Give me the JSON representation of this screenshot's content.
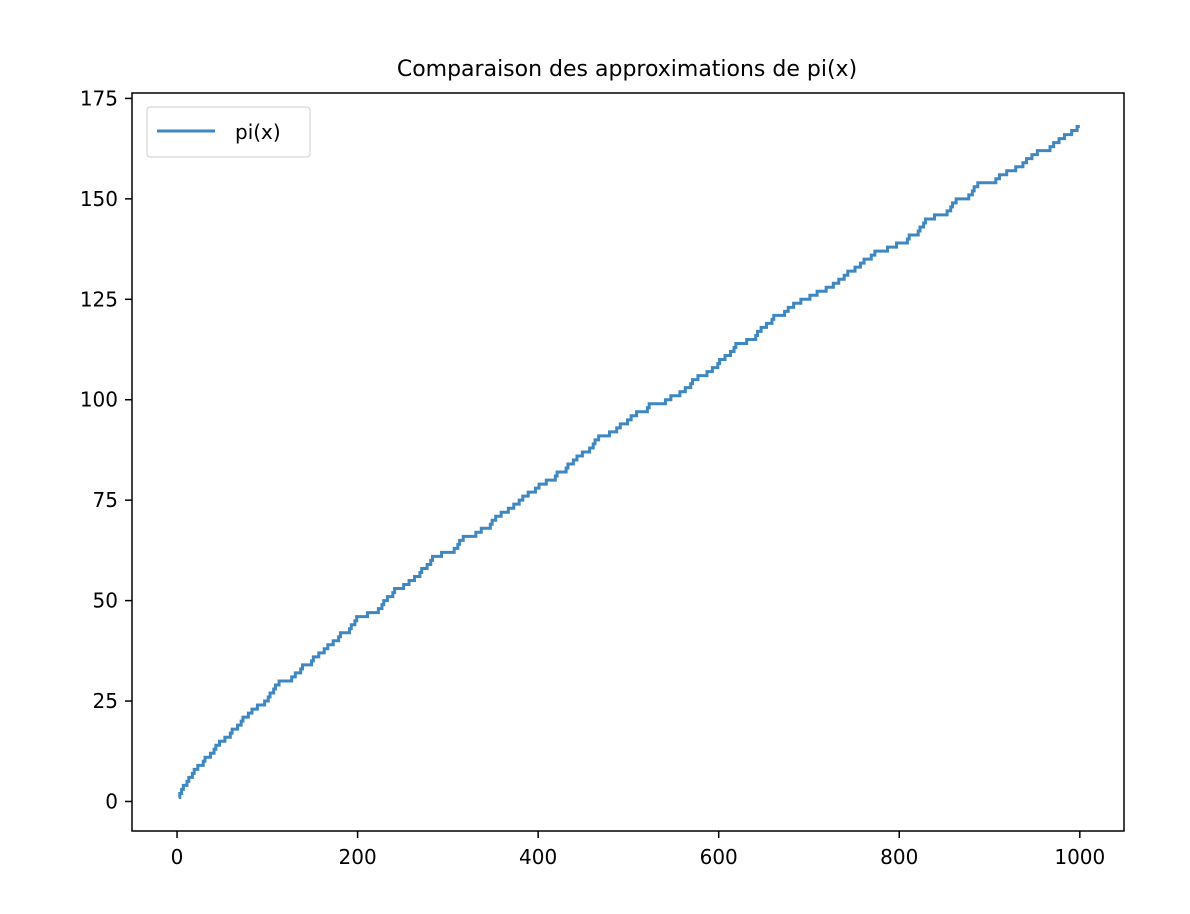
{
  "chart_data": {
    "type": "line",
    "title": "Comparaison des approximations de pi(x)",
    "xlabel": "",
    "ylabel": "",
    "xlim": [
      -49.9,
      1048.95
    ],
    "ylim": [
      -7.35,
      176.35
    ],
    "xticks": [
      0,
      200,
      400,
      600,
      800,
      1000
    ],
    "yticks": [
      0,
      25,
      50,
      75,
      100,
      125,
      150,
      175
    ],
    "xtick_labels": [
      "0",
      "200",
      "400",
      "600",
      "800",
      "1000"
    ],
    "ytick_labels": [
      "0",
      "25",
      "50",
      "75",
      "100",
      "125",
      "150",
      "175"
    ],
    "grid": false,
    "legend_placement": "upper-left",
    "series": [
      {
        "name": "pi(x)",
        "color": "#3f87c0",
        "step": "post",
        "x": [
          2,
          3,
          5,
          7,
          11,
          13,
          17,
          19,
          23,
          29,
          31,
          37,
          41,
          43,
          47,
          53,
          59,
          61,
          67,
          71,
          73,
          79,
          83,
          89,
          97,
          101,
          103,
          107,
          109,
          113,
          127,
          131,
          137,
          139,
          149,
          151,
          157,
          163,
          167,
          173,
          179,
          181,
          191,
          193,
          197,
          199,
          211,
          223,
          227,
          229,
          233,
          239,
          241,
          251,
          257,
          263,
          269,
          271,
          277,
          281,
          283,
          293,
          307,
          311,
          313,
          317,
          331,
          337,
          347,
          349,
          353,
          359,
          367,
          373,
          379,
          383,
          389,
          397,
          401,
          409,
          419,
          421,
          431,
          433,
          439,
          443,
          449,
          457,
          461,
          463,
          467,
          479,
          487,
          491,
          499,
          503,
          509,
          521,
          523,
          541,
          547,
          557,
          563,
          569,
          571,
          577,
          587,
          593,
          599,
          601,
          607,
          613,
          617,
          619,
          631,
          641,
          643,
          647,
          653,
          659,
          661,
          673,
          677,
          683,
          691,
          701,
          709,
          719,
          727,
          733,
          739,
          743,
          751,
          757,
          761,
          769,
          773,
          787,
          797,
          809,
          811,
          821,
          823,
          827,
          829,
          839,
          853,
          857,
          859,
          863,
          877,
          881,
          883,
          887,
          907,
          911,
          919,
          929,
          937,
          941,
          947,
          953,
          967,
          971,
          977,
          983,
          991,
          997,
          1000
        ],
        "values": [
          1,
          2,
          3,
          4,
          5,
          6,
          7,
          8,
          9,
          10,
          11,
          12,
          13,
          14,
          15,
          16,
          17,
          18,
          19,
          20,
          21,
          22,
          23,
          24,
          25,
          26,
          27,
          28,
          29,
          30,
          31,
          32,
          33,
          34,
          35,
          36,
          37,
          38,
          39,
          40,
          41,
          42,
          43,
          44,
          45,
          46,
          47,
          48,
          49,
          50,
          51,
          52,
          53,
          54,
          55,
          56,
          57,
          58,
          59,
          60,
          61,
          62,
          63,
          64,
          65,
          66,
          67,
          68,
          69,
          70,
          71,
          72,
          73,
          74,
          75,
          76,
          77,
          78,
          79,
          80,
          81,
          82,
          83,
          84,
          85,
          86,
          87,
          88,
          89,
          90,
          91,
          92,
          93,
          94,
          95,
          96,
          97,
          98,
          99,
          100,
          101,
          102,
          103,
          104,
          105,
          106,
          107,
          108,
          109,
          110,
          111,
          112,
          113,
          114,
          115,
          116,
          117,
          118,
          119,
          120,
          121,
          122,
          123,
          124,
          125,
          126,
          127,
          128,
          129,
          130,
          131,
          132,
          133,
          134,
          135,
          136,
          137,
          138,
          139,
          140,
          141,
          142,
          143,
          144,
          145,
          146,
          147,
          148,
          149,
          150,
          151,
          152,
          153,
          154,
          155,
          156,
          157,
          158,
          159,
          160,
          161,
          162,
          163,
          164,
          165,
          166,
          167,
          168,
          168
        ]
      }
    ]
  }
}
